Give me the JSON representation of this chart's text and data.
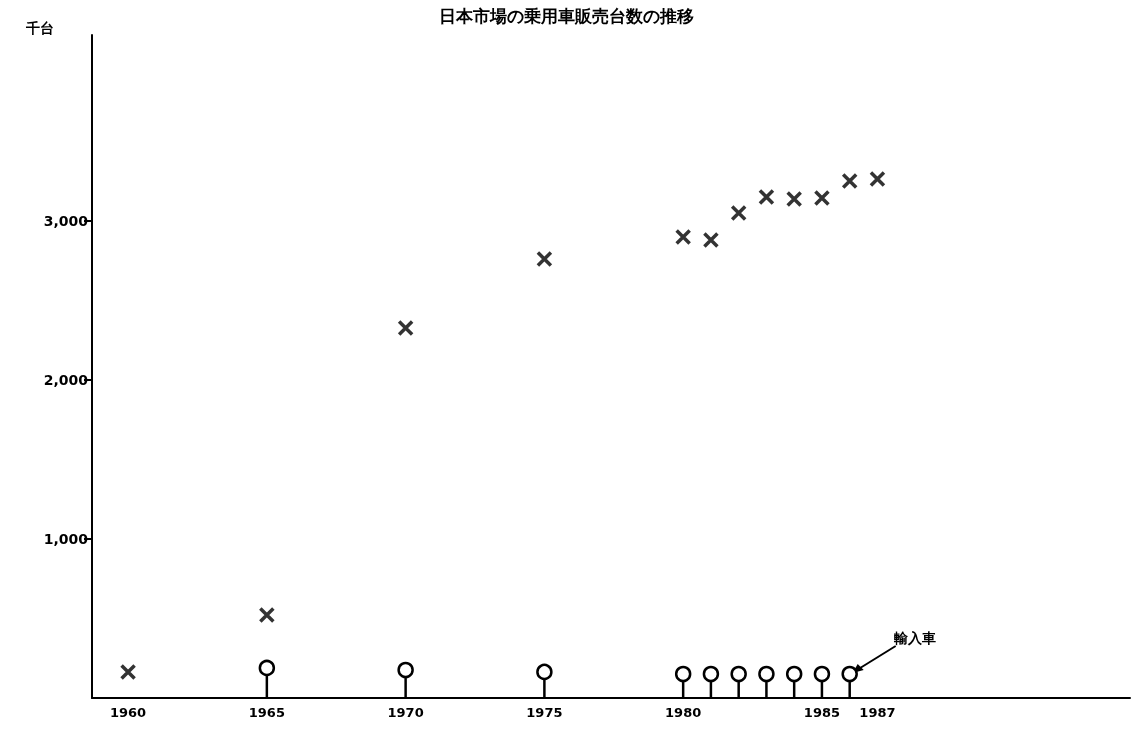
{
  "chart_data": {
    "type": "scatter",
    "title": "日本市場の乗用車販売台数の推移",
    "ylabel": "千台",
    "xlim": [
      1958.7,
      1996.1
    ],
    "xticks": [
      1960,
      1965,
      1970,
      1975,
      1980,
      1985,
      1987
    ],
    "ylim": [
      0,
      4170
    ],
    "yticks": [
      {
        "value": 1000,
        "label": "1,000"
      },
      {
        "value": 2000,
        "label": "2,000"
      },
      {
        "value": 3000,
        "label": "3,000"
      }
    ],
    "grid": false,
    "series": [
      {
        "marker": "cross",
        "color": "#000000",
        "x": [
          1960,
          1965,
          1970,
          1975,
          1980,
          1981,
          1982,
          1983,
          1984,
          1985,
          1986,
          1987
        ],
        "values": [
          164,
          522,
          2327,
          2761,
          2899,
          2881,
          3050,
          3151,
          3138,
          3145,
          3252,
          3264
        ]
      },
      {
        "type": "lollipop",
        "marker": "circle",
        "color": "#000000",
        "x": [
          1965,
          1970,
          1975,
          1980,
          1981,
          1982,
          1983,
          1984,
          1985,
          1986
        ],
        "values": [
          189,
          176,
          164,
          151,
          151,
          151,
          151,
          151,
          151,
          151
        ]
      }
    ],
    "annotations": [
      {
        "text": "輸入車",
        "x": 1986,
        "y": 151
      }
    ]
  }
}
